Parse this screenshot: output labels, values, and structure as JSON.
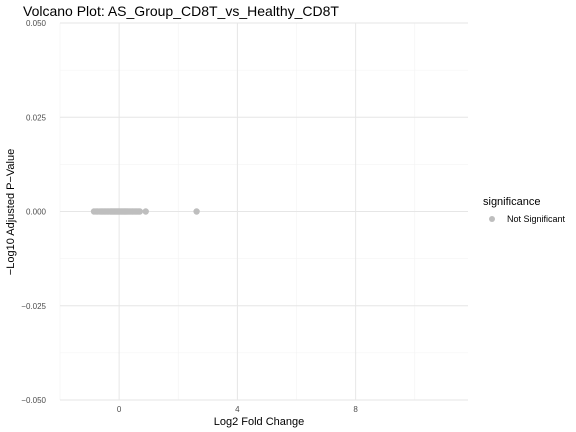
{
  "chart_data": {
    "type": "scatter",
    "title": "Volcano Plot: AS_Group_CD8T_vs_Healthy_CD8T",
    "xlabel": "Log2 Fold Change",
    "ylabel": "−Log10 Adjusted P−Value",
    "xlim": [
      -2,
      11.8
    ],
    "ylim": [
      -0.05,
      0.05
    ],
    "x_ticks": [
      0,
      4,
      8
    ],
    "x_tick_labels": [
      "0",
      "4",
      "8"
    ],
    "y_ticks": [
      -0.05,
      -0.025,
      0,
      0.025,
      0.05
    ],
    "y_tick_labels": [
      "−0.050",
      "−0.025",
      "0.000",
      "0.025",
      "0.050"
    ],
    "grid": true,
    "legend": {
      "title": "significance",
      "position": "right",
      "entries": [
        {
          "label": "Not Significant",
          "color": "#bebebe"
        }
      ]
    },
    "series": [
      {
        "name": "Not Significant",
        "color": "#bebebe",
        "x": [
          -0.85,
          -0.78,
          -0.72,
          -0.65,
          -0.6,
          -0.55,
          -0.5,
          -0.45,
          -0.4,
          -0.35,
          -0.3,
          -0.26,
          -0.22,
          -0.18,
          -0.14,
          -0.1,
          -0.06,
          -0.02,
          0.02,
          0.06,
          0.1,
          0.14,
          0.18,
          0.22,
          0.26,
          0.3,
          0.35,
          0.4,
          0.45,
          0.5,
          0.55,
          0.6,
          0.65,
          0.7,
          0.9,
          2.62
        ],
        "y": [
          0,
          0,
          0,
          0,
          0,
          0,
          0,
          0,
          0,
          0,
          0,
          0,
          0,
          0,
          0,
          0,
          0,
          0,
          0,
          0,
          0,
          0,
          0,
          0,
          0,
          0,
          0,
          0,
          0,
          0,
          0,
          0,
          0,
          0,
          0,
          0
        ]
      }
    ]
  }
}
